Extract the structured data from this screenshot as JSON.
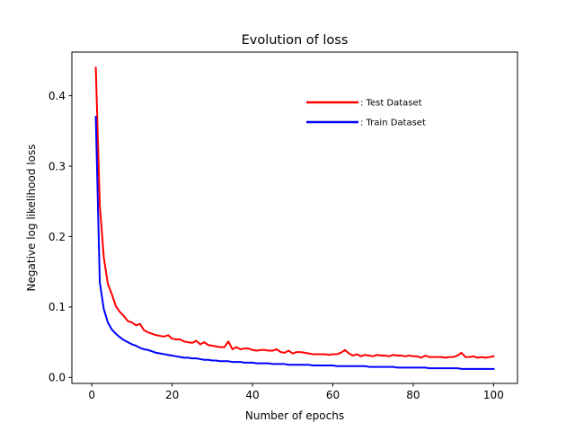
{
  "chart_data": {
    "type": "line",
    "title": "Evolution of loss",
    "xlabel": "Number of epochs",
    "ylabel": "Negative log likelihood loss",
    "xlim": [
      -4.95,
      105.95
    ],
    "ylim": [
      -0.0085,
      0.462
    ],
    "xticks": [
      0,
      20,
      40,
      60,
      80,
      100
    ],
    "yticks": [
      0.0,
      0.1,
      0.2,
      0.3,
      0.4
    ],
    "xtick_labels": [
      "0",
      "20",
      "40",
      "60",
      "80",
      "100"
    ],
    "ytick_labels": [
      "0.0",
      "0.1",
      "0.2",
      "0.3",
      "0.4"
    ],
    "grid": false,
    "legend_position": "top-right",
    "series": [
      {
        "name": ": Test Dataset",
        "color": "#ff0000",
        "x": [
          1,
          2,
          3,
          4,
          5,
          6,
          7,
          8,
          9,
          10,
          11,
          12,
          13,
          14,
          15,
          16,
          17,
          18,
          19,
          20,
          21,
          22,
          23,
          24,
          25,
          26,
          27,
          28,
          29,
          30,
          31,
          32,
          33,
          34,
          35,
          36,
          37,
          38,
          39,
          40,
          41,
          42,
          43,
          44,
          45,
          46,
          47,
          48,
          49,
          50,
          51,
          52,
          53,
          54,
          55,
          56,
          57,
          58,
          59,
          60,
          61,
          62,
          63,
          64,
          65,
          66,
          67,
          68,
          69,
          70,
          71,
          72,
          73,
          74,
          75,
          76,
          77,
          78,
          79,
          80,
          81,
          82,
          83,
          84,
          85,
          86,
          87,
          88,
          89,
          90,
          91,
          92,
          93,
          94,
          95,
          96,
          97,
          98,
          99,
          100
        ],
        "values": [
          0.44,
          0.245,
          0.17,
          0.133,
          0.118,
          0.101,
          0.093,
          0.087,
          0.08,
          0.078,
          0.074,
          0.076,
          0.067,
          0.064,
          0.062,
          0.06,
          0.059,
          0.058,
          0.06,
          0.055,
          0.054,
          0.054,
          0.051,
          0.05,
          0.049,
          0.052,
          0.047,
          0.05,
          0.046,
          0.045,
          0.044,
          0.043,
          0.043,
          0.051,
          0.04,
          0.043,
          0.04,
          0.041,
          0.041,
          0.039,
          0.038,
          0.039,
          0.039,
          0.038,
          0.038,
          0.04,
          0.036,
          0.035,
          0.038,
          0.034,
          0.036,
          0.036,
          0.035,
          0.034,
          0.033,
          0.033,
          0.033,
          0.033,
          0.032,
          0.033,
          0.033,
          0.035,
          0.039,
          0.034,
          0.031,
          0.033,
          0.03,
          0.032,
          0.031,
          0.03,
          0.032,
          0.031,
          0.031,
          0.03,
          0.032,
          0.031,
          0.031,
          0.03,
          0.031,
          0.03,
          0.03,
          0.028,
          0.031,
          0.029,
          0.029,
          0.029,
          0.029,
          0.028,
          0.029,
          0.029,
          0.031,
          0.035,
          0.029,
          0.029,
          0.03,
          0.028,
          0.029,
          0.028,
          0.029,
          0.03
        ]
      },
      {
        "name": ": Train Dataset",
        "color": "#0000ff",
        "x": [
          1,
          2,
          3,
          4,
          5,
          6,
          7,
          8,
          9,
          10,
          11,
          12,
          13,
          14,
          15,
          16,
          17,
          18,
          19,
          20,
          21,
          22,
          23,
          24,
          25,
          26,
          27,
          28,
          29,
          30,
          31,
          32,
          33,
          34,
          35,
          36,
          37,
          38,
          39,
          40,
          41,
          42,
          43,
          44,
          45,
          46,
          47,
          48,
          49,
          50,
          51,
          52,
          53,
          54,
          55,
          56,
          57,
          58,
          59,
          60,
          61,
          62,
          63,
          64,
          65,
          66,
          67,
          68,
          69,
          70,
          71,
          72,
          73,
          74,
          75,
          76,
          77,
          78,
          79,
          80,
          81,
          82,
          83,
          84,
          85,
          86,
          87,
          88,
          89,
          90,
          91,
          92,
          93,
          94,
          95,
          96,
          97,
          98,
          99,
          100
        ],
        "values": [
          0.37,
          0.135,
          0.097,
          0.078,
          0.068,
          0.062,
          0.057,
          0.053,
          0.05,
          0.047,
          0.045,
          0.042,
          0.04,
          0.039,
          0.037,
          0.035,
          0.034,
          0.033,
          0.032,
          0.031,
          0.03,
          0.029,
          0.028,
          0.028,
          0.027,
          0.027,
          0.026,
          0.025,
          0.025,
          0.024,
          0.024,
          0.023,
          0.023,
          0.023,
          0.022,
          0.022,
          0.022,
          0.021,
          0.021,
          0.021,
          0.02,
          0.02,
          0.02,
          0.02,
          0.019,
          0.019,
          0.019,
          0.019,
          0.018,
          0.018,
          0.018,
          0.018,
          0.018,
          0.018,
          0.017,
          0.017,
          0.017,
          0.017,
          0.017,
          0.017,
          0.016,
          0.016,
          0.016,
          0.016,
          0.016,
          0.016,
          0.016,
          0.016,
          0.015,
          0.015,
          0.015,
          0.015,
          0.015,
          0.015,
          0.015,
          0.014,
          0.014,
          0.014,
          0.014,
          0.014,
          0.014,
          0.014,
          0.014,
          0.013,
          0.013,
          0.013,
          0.013,
          0.013,
          0.013,
          0.013,
          0.013,
          0.012,
          0.012,
          0.012,
          0.012,
          0.012,
          0.012,
          0.012,
          0.012,
          0.012
        ]
      }
    ]
  }
}
